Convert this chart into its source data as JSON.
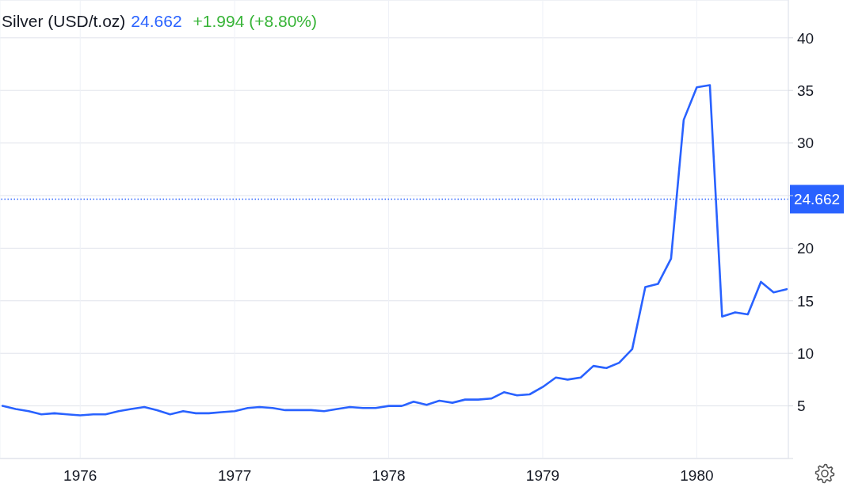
{
  "chart_data": {
    "type": "line",
    "title": "Silver (USD/t.oz)",
    "annotations": [
      "24.662",
      "+1.994 (+8.80%)"
    ],
    "x": [
      "1975-07",
      "1975-08",
      "1975-09",
      "1975-10",
      "1975-11",
      "1975-12",
      "1976-01",
      "1976-02",
      "1976-03",
      "1976-04",
      "1976-05",
      "1976-06",
      "1976-07",
      "1976-08",
      "1976-09",
      "1976-10",
      "1976-11",
      "1976-12",
      "1977-01",
      "1977-02",
      "1977-03",
      "1977-04",
      "1977-05",
      "1977-06",
      "1977-07",
      "1977-08",
      "1977-09",
      "1977-10",
      "1977-11",
      "1977-12",
      "1978-01",
      "1978-02",
      "1978-03",
      "1978-04",
      "1978-05",
      "1978-06",
      "1978-07",
      "1978-08",
      "1978-09",
      "1978-10",
      "1978-11",
      "1978-12",
      "1979-01",
      "1979-02",
      "1979-03",
      "1979-04",
      "1979-05",
      "1979-06",
      "1979-07",
      "1979-08",
      "1979-09",
      "1979-10",
      "1979-11",
      "1979-12",
      "1980-01",
      "1980-02",
      "1980-03",
      "1980-04",
      "1980-05",
      "1980-06",
      "1980-07",
      "1980-08"
    ],
    "series": [
      {
        "color": "#2962ff",
        "values": [
          5.0,
          4.7,
          4.5,
          4.2,
          4.3,
          4.2,
          4.1,
          4.2,
          4.2,
          4.5,
          4.7,
          4.9,
          4.6,
          4.2,
          4.5,
          4.3,
          4.3,
          4.4,
          4.5,
          4.8,
          4.9,
          4.8,
          4.6,
          4.6,
          4.6,
          4.5,
          4.7,
          4.9,
          4.8,
          4.8,
          5.0,
          5.0,
          5.4,
          5.1,
          5.5,
          5.3,
          5.6,
          5.6,
          5.7,
          6.3,
          6.0,
          6.1,
          6.8,
          7.7,
          7.5,
          7.7,
          8.8,
          8.6,
          9.1,
          10.4,
          16.3,
          16.6,
          19.0,
          32.2,
          35.3,
          35.5,
          13.5,
          13.9,
          13.7,
          16.8,
          15.8,
          16.1
        ]
      }
    ],
    "xlim": [
      "1975-06-25",
      "1980-08-05"
    ],
    "xticks": [
      "1976",
      "1977",
      "1978",
      "1979",
      "1980"
    ],
    "ylim": [
      0,
      43.6
    ],
    "yticks": [
      {
        "value": 0,
        "label": null
      },
      5,
      10,
      15,
      20,
      {
        "value": 25,
        "label": null
      },
      30,
      35,
      40
    ],
    "grid": true,
    "marker": "none",
    "line_style": "solid",
    "ref_lines": [
      {
        "axis": "y",
        "value": 24.662,
        "label": "24.662",
        "color": "#2962ff",
        "line_style": "dotted"
      }
    ]
  }
}
